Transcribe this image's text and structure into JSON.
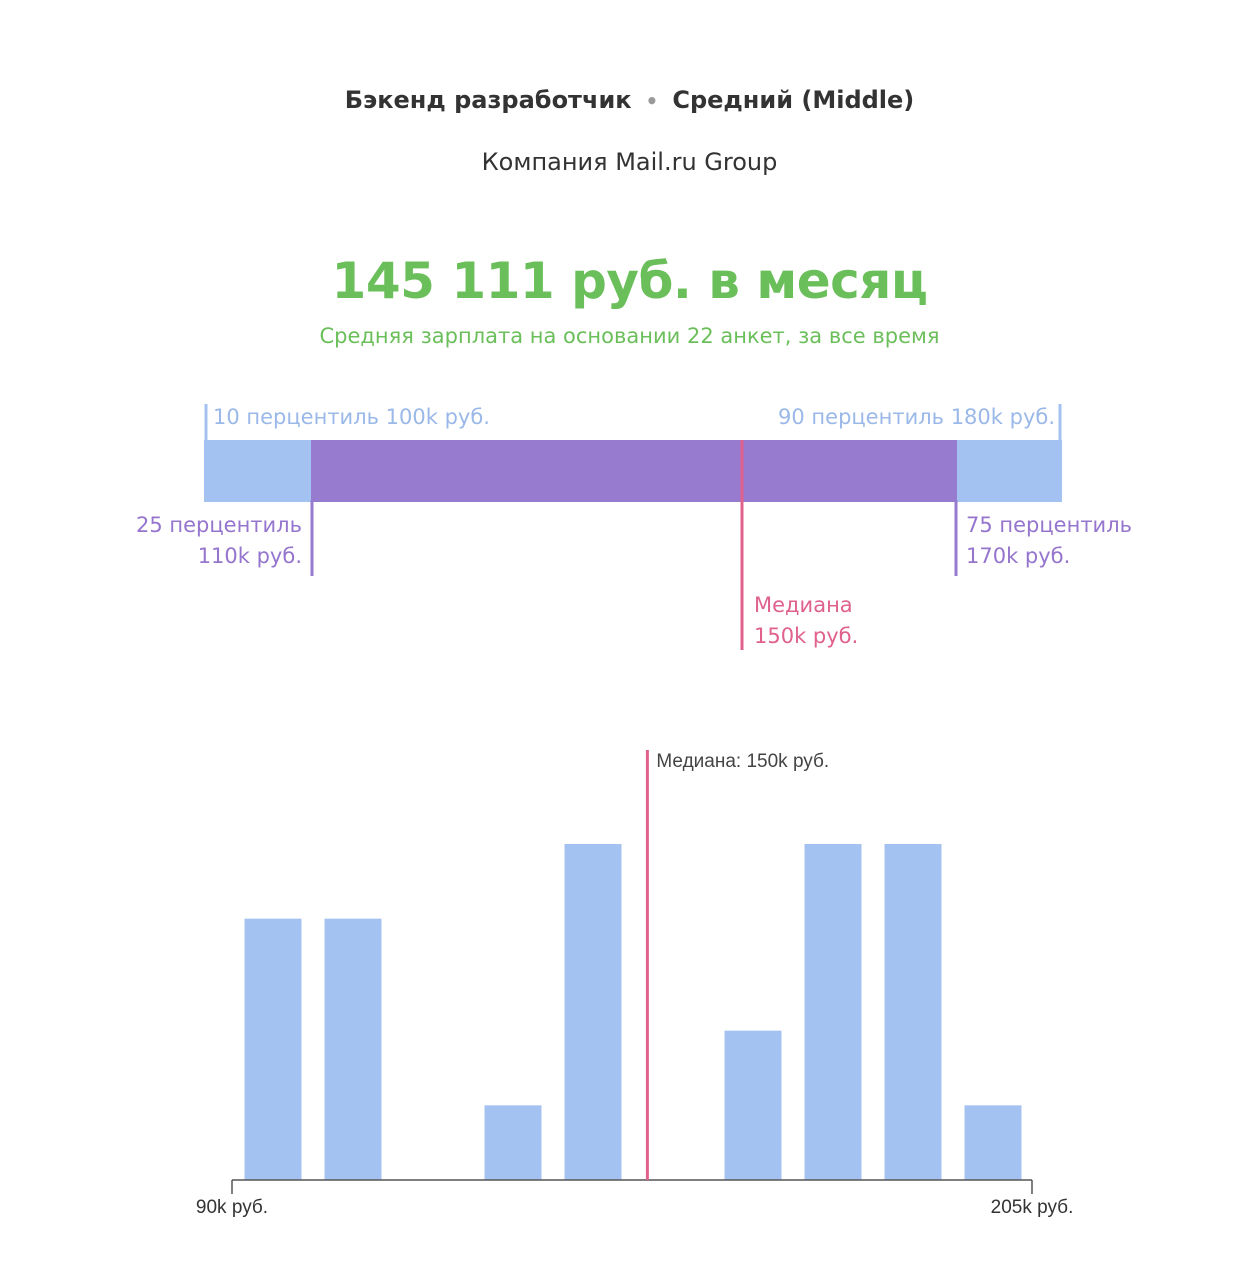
{
  "header": {
    "position": "Бэкенд разработчик",
    "separator": "•",
    "level": "Средний (Middle)",
    "company": "Компания Mail.ru Group"
  },
  "salary": {
    "average": "145 111 руб. в месяц",
    "subtitle": "Средняя зарплата на основании 22 анкет, за все время"
  },
  "percentiles": {
    "p10": "10 перцентиль 100k руб.",
    "p90": "90 перцентиль 180k руб.",
    "p25_line1": "25 перцентиль",
    "p25_line2": "110k руб.",
    "p75_line1": "75 перцентиль",
    "p75_line2": "170k руб.",
    "median_line1": "Медиана",
    "median_line2": "150k руб."
  },
  "colors": {
    "green": "#6bbf5a",
    "blue": "#a4c2f1",
    "purple": "#977bcf",
    "pink": "#e0608e"
  },
  "chart_data": {
    "type": "bar",
    "title": "",
    "xlabel": "",
    "ylabel": "",
    "x_range": [
      90,
      205
    ],
    "x_unit": "k руб.",
    "bins": 10,
    "values": [
      3.5,
      3.5,
      0,
      1,
      4.5,
      0,
      2,
      4.5,
      4.5,
      1
    ],
    "ylim": [
      0,
      4.5
    ],
    "x_tick_labels": [
      "90k руб.",
      "205k руб."
    ],
    "median_value": 150,
    "median_label": "Медиана: 150k руб."
  }
}
